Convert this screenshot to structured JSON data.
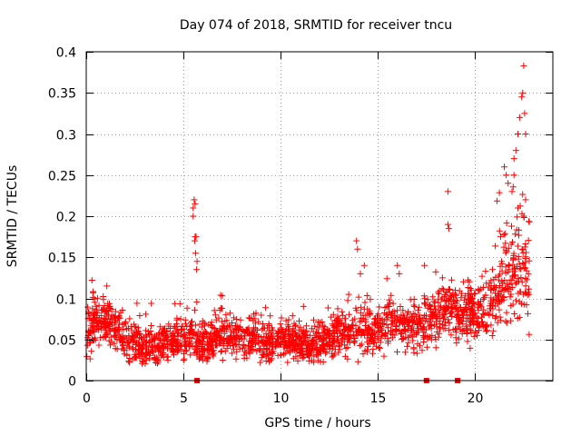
{
  "colors": {
    "points": "#ff0000",
    "grid": "#a0a0a0",
    "axis": "#000000"
  },
  "chart_data": {
    "type": "scatter",
    "title": "Day 074 of 2018, SRMTID for receiver tncu",
    "xlabel": "GPS time / hours",
    "ylabel": "SRMTID / TECUs",
    "xlim": [
      0,
      24
    ],
    "ylim": [
      0,
      0.4
    ],
    "grid": true,
    "marker": "plus",
    "x_ticks": [
      0,
      5,
      10,
      15,
      20
    ],
    "x_tick_labels": [
      "0",
      "5",
      "10",
      "15",
      "20"
    ],
    "y_ticks": [
      0,
      0.05,
      0.1,
      0.15,
      0.2,
      0.25,
      0.3,
      0.35,
      0.4
    ],
    "y_tick_labels": [
      "0",
      "0.05",
      "0.1",
      "0.15",
      "0.2",
      "0.25",
      "0.3",
      "0.35",
      "0.4"
    ],
    "series": [
      {
        "name": "SRMTID",
        "point_count_estimate": 2800,
        "profile_note": "Dense cloud of plus markers; typical level per hour shown in 'profile'.",
        "profile": {
          "x": [
            0,
            0.5,
            1,
            1.5,
            2,
            2.5,
            3,
            3.5,
            4,
            4.5,
            5,
            5.5,
            6,
            6.5,
            7,
            7.5,
            8,
            8.5,
            9,
            9.5,
            10,
            10.5,
            11,
            11.5,
            12,
            12.5,
            13,
            13.5,
            14,
            14.5,
            15,
            15.5,
            16,
            16.5,
            17,
            17.5,
            18,
            18.5,
            19,
            19.5,
            20,
            20.5,
            21,
            21.5,
            22,
            22.5,
            22.8
          ],
          "y": [
            0.06,
            0.075,
            0.07,
            0.065,
            0.05,
            0.045,
            0.04,
            0.045,
            0.045,
            0.05,
            0.05,
            0.055,
            0.045,
            0.05,
            0.055,
            0.05,
            0.05,
            0.055,
            0.045,
            0.045,
            0.05,
            0.05,
            0.045,
            0.04,
            0.045,
            0.05,
            0.06,
            0.06,
            0.065,
            0.06,
            0.065,
            0.07,
            0.065,
            0.065,
            0.065,
            0.07,
            0.08,
            0.085,
            0.08,
            0.08,
            0.085,
            0.09,
            0.1,
            0.12,
            0.13,
            0.14,
            0.14
          ]
        },
        "spread": {
          "x": [
            0,
            2,
            5,
            7,
            10,
            12,
            14,
            16,
            18,
            20,
            21,
            22,
            22.8
          ],
          "y": [
            0.028,
            0.022,
            0.022,
            0.022,
            0.02,
            0.02,
            0.025,
            0.025,
            0.028,
            0.03,
            0.04,
            0.06,
            0.06
          ]
        },
        "notable_points": {
          "x": [
            5.5,
            5.55,
            5.6,
            5.5,
            5.6,
            5.65,
            5.58,
            5.62,
            5.7,
            5.68,
            13.9,
            13.95,
            14.1,
            14.3,
            16.0,
            16.1,
            17.4,
            18.6,
            18.6,
            18.65,
            21.5,
            21.6,
            21.7,
            22.0,
            22.1,
            22.2,
            22.3,
            22.4,
            22.45,
            22.5,
            22.55,
            22.6,
            22.6,
            22.5,
            21.9,
            22.0,
            22.2
          ],
          "y": [
            0.21,
            0.22,
            0.215,
            0.2,
            0.175,
            0.175,
            0.17,
            0.155,
            0.145,
            0.135,
            0.17,
            0.16,
            0.13,
            0.14,
            0.14,
            0.13,
            0.14,
            0.23,
            0.19,
            0.185,
            0.26,
            0.25,
            0.24,
            0.27,
            0.28,
            0.3,
            0.32,
            0.345,
            0.35,
            0.383,
            0.325,
            0.3,
            0.22,
            0.2,
            0.23,
            0.25,
            0.21
          ]
        },
        "zero_points": {
          "x": [
            5.7,
            17.5,
            19.1
          ],
          "y": [
            0,
            0,
            0
          ]
        }
      }
    ]
  }
}
